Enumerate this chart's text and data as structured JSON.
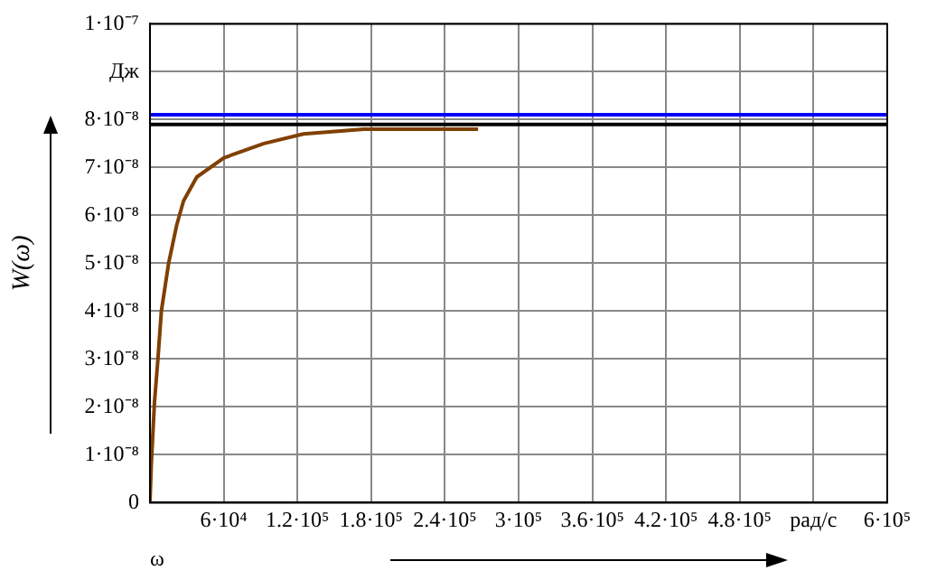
{
  "chart_data": {
    "type": "line",
    "xlabel": "ω",
    "ylabel": "W(ω)",
    "xlim": [
      0,
      600000
    ],
    "ylim": [
      0,
      1e-07
    ],
    "xticks": [
      {
        "value": 60000,
        "label": "6·10⁴"
      },
      {
        "value": 120000,
        "label": "1.2·10⁵"
      },
      {
        "value": 180000,
        "label": "1.8·10⁵"
      },
      {
        "value": 240000,
        "label": "2.4·10⁵"
      },
      {
        "value": 300000,
        "label": "3·10⁵"
      },
      {
        "value": 360000,
        "label": "3.6·10⁵"
      },
      {
        "value": 420000,
        "label": "4.2·10⁵"
      },
      {
        "value": 480000,
        "label": "4.8·10⁵"
      },
      {
        "value": 540000,
        "label": "рад/с"
      },
      {
        "value": 600000,
        "label": "6·10⁵"
      }
    ],
    "yticks": [
      0,
      {
        "value": 1e-08,
        "label": "1·10⁻⁸"
      },
      {
        "value": 2e-08,
        "label": "2·10⁻⁸"
      },
      {
        "value": 3e-08,
        "label": "3·10⁻⁸"
      },
      {
        "value": 4e-08,
        "label": "4·10⁻⁸"
      },
      {
        "value": 5e-08,
        "label": "5·10⁻⁸"
      },
      {
        "value": 6e-08,
        "label": "6·10⁻⁸"
      },
      {
        "value": 7e-08,
        "label": "7·10⁻⁸"
      },
      {
        "value": 8e-08,
        "label": "8·10⁻⁸"
      },
      {
        "value": 9e-08,
        "label": "Дж"
      },
      {
        "value": 1e-07,
        "label": "1·10⁻⁷"
      }
    ],
    "grid": true,
    "legend": false,
    "marker": "none",
    "line_style": "solid",
    "series": [
      {
        "color": "#0000ff",
        "x": [
          0,
          600000
        ],
        "values": [
          8.1e-08,
          8.1e-08
        ]
      },
      {
        "color": "#000000",
        "x": [
          0,
          600000
        ],
        "values": [
          7.9e-08,
          7.9e-08
        ]
      },
      {
        "color": "#804000",
        "x": [
          0,
          1100,
          3700,
          6500,
          9300,
          15200,
          21800,
          27300,
          38100,
          60000,
          92700,
          125000,
          174000,
          229000,
          267000
        ],
        "values": [
          0,
          8e-09,
          2.1e-08,
          3e-08,
          4e-08,
          5e-08,
          5.8e-08,
          6.3e-08,
          6.8e-08,
          7.2e-08,
          7.5e-08,
          7.7e-08,
          7.8e-08,
          7.8e-08,
          7.8e-08
        ]
      }
    ]
  }
}
